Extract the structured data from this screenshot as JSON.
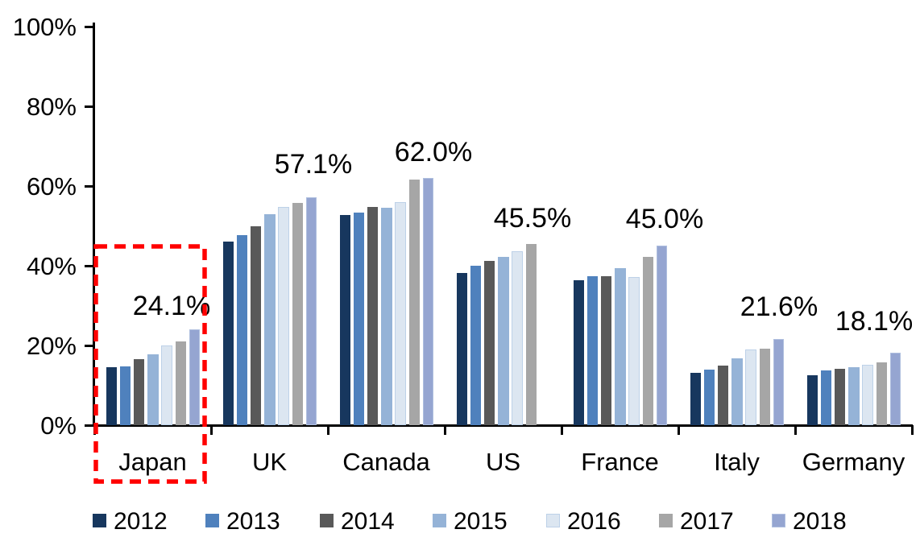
{
  "chart_data": {
    "type": "bar",
    "title": "",
    "xlabel": "",
    "ylabel": "",
    "ylim": [
      0,
      100
    ],
    "grid": false,
    "legend_position": "bottom",
    "y_ticks": [
      "100%",
      "80%",
      "60%",
      "40%",
      "20%",
      "0%"
    ],
    "categories": [
      "Japan",
      "UK",
      "Canada",
      "US",
      "France",
      "Italy",
      "Germany"
    ],
    "series": [
      {
        "name": "2012",
        "color": "#17375E",
        "border": null,
        "values": [
          14.5,
          46.1,
          52.7,
          38.2,
          36.4,
          13.2,
          12.5
        ]
      },
      {
        "name": "2013",
        "color": "#4F81BD",
        "border": null,
        "values": [
          14.8,
          47.6,
          53.3,
          39.9,
          37.4,
          14.0,
          13.8
        ]
      },
      {
        "name": "2014",
        "color": "#595959",
        "border": null,
        "values": [
          16.5,
          49.8,
          54.8,
          41.2,
          37.4,
          15.0,
          14.2
        ]
      },
      {
        "name": "2015",
        "color": "#95B3D7",
        "border": null,
        "values": [
          17.8,
          53.0,
          54.6,
          42.2,
          39.4,
          16.7,
          14.5
        ]
      },
      {
        "name": "2016",
        "color": "#DCE6F1",
        "border": "#BDD1E8",
        "values": [
          19.9,
          54.7,
          56.0,
          43.6,
          37.2,
          18.9,
          15.1
        ]
      },
      {
        "name": "2017",
        "color": "#A6A6A6",
        "border": null,
        "values": [
          21.0,
          55.8,
          61.6,
          45.5,
          42.3,
          19.1,
          15.7
        ]
      },
      {
        "name": "2018",
        "color": "#95A5D1",
        "border": "#AFBFDF",
        "values": [
          24.1,
          57.1,
          62.0,
          null,
          45.0,
          21.6,
          18.1
        ]
      }
    ],
    "value_labels": [
      "24.1%",
      "57.1%",
      "62.0%",
      "45.5%",
      "45.0%",
      "21.6%",
      "18.1%"
    ],
    "highlight": {
      "target": "Japan",
      "shape": "dashed-rectangle",
      "color": "#FF0000"
    }
  },
  "colors": {
    "axis": "#000000",
    "text": "#000000",
    "background": "#FFFFFF"
  }
}
